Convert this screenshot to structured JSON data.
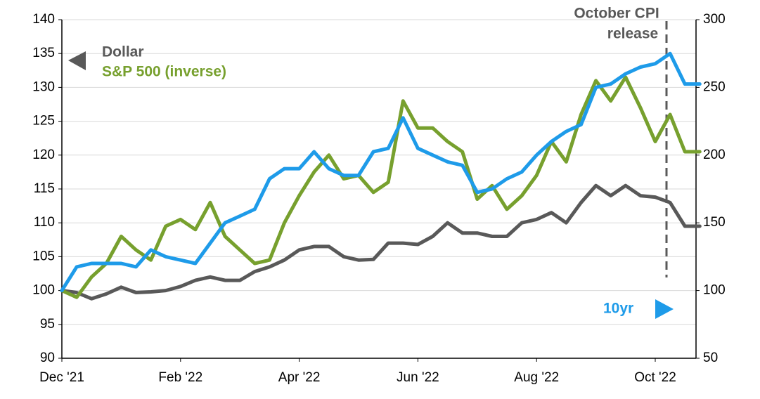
{
  "chart_data": {
    "type": "line",
    "categories": [
      "Dec '21",
      null,
      null,
      null,
      null,
      null,
      null,
      null,
      "Feb '22",
      null,
      null,
      null,
      null,
      null,
      null,
      null,
      "Apr '22",
      null,
      null,
      null,
      null,
      null,
      null,
      null,
      "Jun '22",
      null,
      null,
      null,
      null,
      null,
      null,
      null,
      "Aug '22",
      null,
      null,
      null,
      null,
      null,
      null,
      null,
      "Oct '22",
      null,
      null,
      null
    ],
    "series": [
      {
        "name": "Dollar",
        "color": "#595959",
        "axis": "y",
        "values": [
          100,
          99.7,
          98.8,
          99.5,
          100.5,
          99.7,
          99.8,
          100,
          100.6,
          101.5,
          102,
          101.5,
          101.5,
          102.8,
          103.5,
          104.5,
          106,
          106.5,
          106.5,
          105,
          104.5,
          104.6,
          107,
          107,
          106.8,
          108,
          110,
          108.5,
          108.5,
          108,
          108,
          110,
          110.5,
          111.5,
          110,
          113,
          115.5,
          114,
          115.5,
          114,
          113.8,
          113,
          109.5,
          109.5
        ]
      },
      {
        "name": "S&P 500 (inverse)",
        "color": "#77a02e",
        "axis": "y",
        "values": [
          100,
          99,
          102,
          104,
          108,
          106,
          104.5,
          109.5,
          110.5,
          109,
          113,
          108,
          106,
          104,
          104.5,
          110,
          114,
          117.5,
          120,
          116.5,
          117,
          114.5,
          116,
          128,
          124,
          124,
          122,
          120.5,
          113.5,
          115.5,
          112,
          114,
          117,
          122,
          119,
          126,
          131,
          128,
          131.5,
          127,
          122,
          126,
          120.5,
          120.5
        ]
      },
      {
        "name": "10yr",
        "color": "#1e9be9",
        "axis": "y2",
        "values": [
          100,
          117.5,
          120,
          120,
          120,
          117.5,
          130,
          125,
          122.5,
          120,
          135,
          150,
          155,
          160,
          182.5,
          190,
          190,
          202.5,
          190,
          185,
          185,
          202.5,
          205,
          227.5,
          205,
          200,
          195,
          192.5,
          172.5,
          175,
          182.5,
          187.5,
          200,
          210,
          217.5,
          222.5,
          250,
          252.5,
          260,
          265,
          267.5,
          275,
          252.5,
          252.5
        ]
      }
    ],
    "ylim": [
      90,
      140
    ],
    "yticks": [
      90,
      95,
      100,
      105,
      110,
      115,
      120,
      125,
      130,
      135,
      140
    ],
    "y2lim": [
      50,
      300
    ],
    "y2ticks": [
      50,
      100,
      150,
      200,
      250,
      300
    ],
    "grid": true,
    "annotation": [
      "October CPI",
      "release"
    ]
  }
}
